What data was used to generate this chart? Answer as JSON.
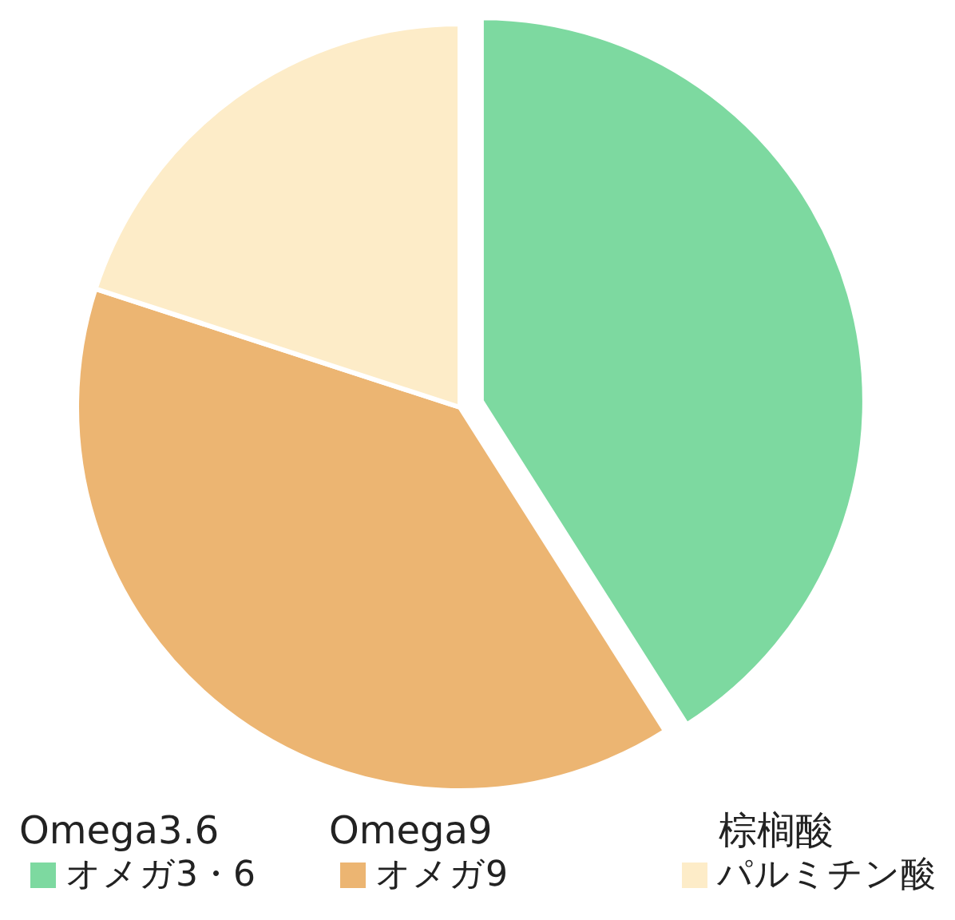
{
  "chart_data": {
    "type": "pie",
    "categories": [
      "オメガ3・6",
      "オメガ9",
      "パルミチン酸"
    ],
    "values": [
      41,
      39,
      20
    ],
    "colors": [
      "#7dd9a0",
      "#ecb572",
      "#fdecc8"
    ],
    "legend": "bottom",
    "annotations": [
      "Omega3.6",
      "Omega9",
      "棕榈酸"
    ]
  }
}
